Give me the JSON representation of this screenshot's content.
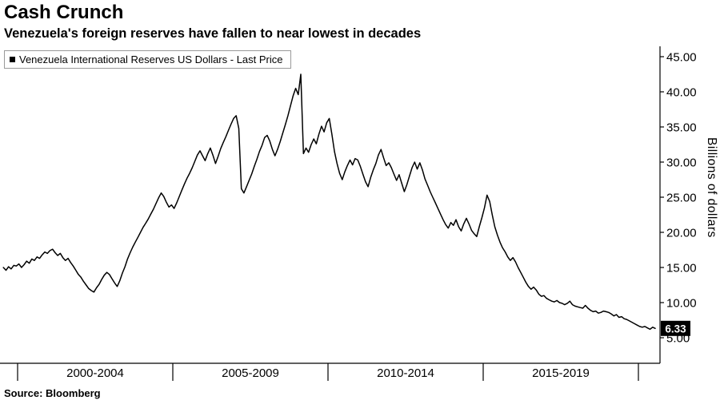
{
  "header": {
    "title": "Cash Crunch",
    "subtitle": "Venezuela's foreign reserves have fallen to near lowest in decades"
  },
  "legend": {
    "label": "Venezuela International Reserves US Dollars - Last Price"
  },
  "axes": {
    "y_label": "Billions of dollars",
    "y_ticks": [
      "45.00",
      "40.00",
      "35.00",
      "30.00",
      "25.00",
      "20.00",
      "15.00",
      "10.00",
      "5.00"
    ],
    "x_labels": [
      "2000-2004",
      "2005-2009",
      "2010-2014",
      "2015-2019"
    ]
  },
  "last_price": "6.33",
  "source": "Source: Bloomberg",
  "colors": {
    "line": "#000000",
    "badge_bg": "#000000",
    "badge_text": "#ffffff"
  },
  "chart_data": {
    "type": "line",
    "title": "Cash Crunch",
    "subtitle": "Venezuela's foreign reserves have fallen to near lowest in decades",
    "series_name": "Venezuela International Reserves US Dollars - Last Price",
    "ylabel": "Billions of dollars",
    "ylim": [
      5,
      45
    ],
    "grid": false,
    "legend_position": "top-left",
    "x_tick_years": [
      2000,
      2005,
      2010,
      2015,
      2020
    ],
    "x_start_year": 1999.542,
    "x_step_years": 0.08333,
    "last_price": 6.33,
    "values": [
      15.0,
      14.6,
      15.1,
      14.8,
      15.3,
      15.2,
      15.5,
      15.0,
      15.4,
      15.9,
      15.6,
      16.2,
      16.0,
      16.5,
      16.3,
      16.8,
      17.2,
      17.0,
      17.4,
      17.6,
      17.1,
      16.7,
      17.0,
      16.4,
      16.0,
      16.3,
      15.7,
      15.2,
      14.6,
      14.0,
      13.6,
      13.0,
      12.5,
      12.0,
      11.7,
      11.5,
      12.1,
      12.6,
      13.3,
      13.9,
      14.3,
      14.0,
      13.4,
      12.8,
      12.3,
      13.1,
      14.2,
      15.1,
      16.2,
      17.1,
      17.9,
      18.6,
      19.3,
      20.0,
      20.7,
      21.3,
      21.9,
      22.6,
      23.3,
      24.1,
      24.9,
      25.6,
      25.1,
      24.3,
      23.6,
      23.9,
      23.4,
      24.2,
      25.1,
      26.0,
      26.9,
      27.7,
      28.4,
      29.2,
      30.1,
      31.0,
      31.6,
      30.9,
      30.2,
      31.2,
      32.0,
      31.0,
      29.8,
      30.8,
      31.9,
      32.8,
      33.6,
      34.5,
      35.4,
      36.2,
      36.6,
      34.8,
      26.2,
      25.6,
      26.5,
      27.4,
      28.3,
      29.4,
      30.4,
      31.5,
      32.4,
      33.5,
      33.8,
      33.0,
      31.8,
      30.9,
      31.8,
      32.9,
      34.1,
      35.3,
      36.6,
      38.0,
      39.4,
      40.5,
      39.6,
      42.5,
      31.2,
      32.0,
      31.4,
      32.5,
      33.3,
      32.6,
      34.0,
      35.1,
      34.3,
      35.6,
      36.2,
      34.0,
      31.5,
      29.8,
      28.4,
      27.5,
      28.6,
      29.5,
      30.3,
      29.6,
      30.5,
      30.3,
      29.4,
      28.3,
      27.2,
      26.5,
      27.8,
      28.9,
      29.8,
      31.0,
      31.8,
      30.6,
      29.5,
      29.9,
      29.2,
      28.3,
      27.4,
      28.2,
      27.0,
      25.8,
      26.8,
      28.0,
      29.2,
      30.0,
      29.0,
      29.9,
      28.9,
      27.6,
      26.7,
      25.8,
      25.0,
      24.2,
      23.4,
      22.6,
      21.8,
      21.1,
      20.6,
      21.4,
      21.0,
      21.8,
      20.8,
      20.2,
      21.2,
      22.0,
      21.2,
      20.3,
      19.8,
      19.4,
      20.8,
      22.1,
      23.5,
      25.3,
      24.4,
      22.5,
      20.8,
      19.6,
      18.6,
      17.8,
      17.2,
      16.5,
      16.0,
      16.4,
      15.8,
      15.0,
      14.3,
      13.6,
      12.9,
      12.3,
      11.9,
      12.2,
      11.8,
      11.2,
      10.9,
      11.0,
      10.6,
      10.4,
      10.2,
      10.1,
      10.3,
      10.0,
      9.9,
      9.7,
      9.9,
      10.2,
      9.7,
      9.5,
      9.4,
      9.3,
      9.2,
      9.6,
      9.2,
      8.9,
      8.7,
      8.8,
      8.5,
      8.6,
      8.8,
      8.7,
      8.6,
      8.4,
      8.1,
      8.3,
      7.9,
      8.0,
      7.7,
      7.6,
      7.4,
      7.2,
      7.0,
      6.8,
      6.6,
      6.5,
      6.6,
      6.4,
      6.2,
      6.5,
      6.33
    ]
  }
}
